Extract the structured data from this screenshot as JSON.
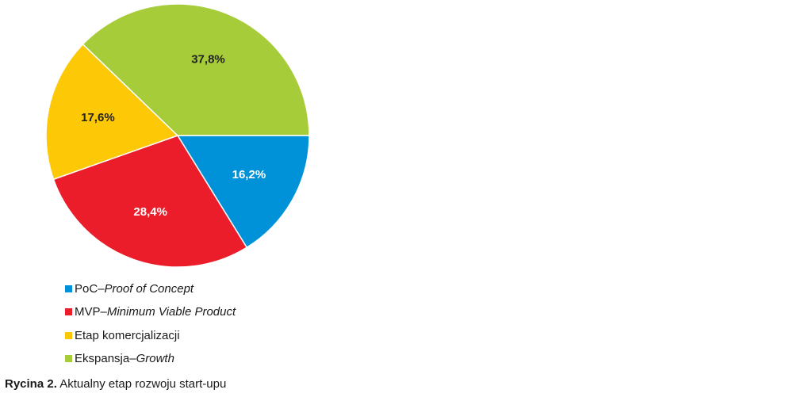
{
  "chart_data": {
    "type": "pie",
    "slices": [
      {
        "label": "PoC",
        "label_italic": "Proof of Concept",
        "value": 16.2,
        "display": "16,2%",
        "color": "#0092D9",
        "label_color": "#ffffff"
      },
      {
        "label": "MVP",
        "label_italic": "Minimum Viable Product",
        "value": 28.4,
        "display": "28,4%",
        "color": "#EC1D2B",
        "label_color": "#ffffff"
      },
      {
        "label": "Etap komercjalizacji",
        "label_italic": "",
        "value": 17.6,
        "display": "17,6%",
        "color": "#FDC806",
        "label_color": "#222222"
      },
      {
        "label": "Ekspansja",
        "label_italic": "Growth",
        "value": 37.8,
        "display": "37,8%",
        "color": "#A7CC3A",
        "label_color": "#222222"
      }
    ],
    "start_direction": "3 o'clock",
    "direction": "clockwise",
    "legend_position": "bottom-left"
  },
  "legend": {
    "separator": " – "
  },
  "caption": {
    "label": "Rycina 2.",
    "text": " Aktualny etap rozwoju start-upu"
  }
}
